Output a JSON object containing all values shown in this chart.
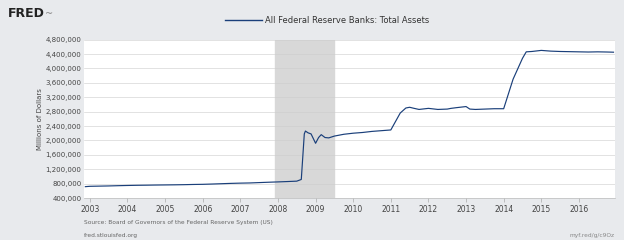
{
  "title": "All Federal Reserve Banks: Total Assets",
  "ylabel": "Millions of Dollars",
  "source_line1": "Source: Board of Governors of the Federal Reserve System (US)",
  "source_line2": "fred.stlouisfed.org",
  "source_right": "myf.red/g/c9Oz",
  "line_color": "#1a3f7a",
  "header_bg_color": "#e8eaed",
  "plot_bg_color": "#ffffff",
  "figure_bg_color": "#e8eaed",
  "shade_color": "#d8d8d8",
  "shade_start": 2007.92,
  "shade_end": 2009.5,
  "ylim": [
    400000,
    4800000
  ],
  "yticks": [
    400000,
    800000,
    1200000,
    1600000,
    2000000,
    2400000,
    2800000,
    3200000,
    3600000,
    4000000,
    4400000,
    4800000
  ],
  "xlim_start": 2002.85,
  "xlim_end": 2016.95,
  "xtick_years": [
    2003,
    2004,
    2005,
    2006,
    2007,
    2008,
    2009,
    2010,
    2011,
    2012,
    2013,
    2014,
    2015,
    2016
  ],
  "data_x": [
    2002.88,
    2003.0,
    2003.25,
    2003.5,
    2003.75,
    2004.0,
    2004.25,
    2004.5,
    2004.75,
    2005.0,
    2005.25,
    2005.5,
    2005.75,
    2006.0,
    2006.25,
    2006.5,
    2006.75,
    2007.0,
    2007.25,
    2007.5,
    2007.75,
    2008.0,
    2008.25,
    2008.5,
    2008.62,
    2008.7,
    2008.73,
    2008.8,
    2008.88,
    2009.0,
    2009.08,
    2009.15,
    2009.25,
    2009.35,
    2009.5,
    2009.75,
    2010.0,
    2010.25,
    2010.5,
    2010.75,
    2011.0,
    2011.25,
    2011.4,
    2011.5,
    2011.62,
    2011.75,
    2012.0,
    2012.25,
    2012.5,
    2012.6,
    2012.75,
    2013.0,
    2013.1,
    2013.25,
    2013.5,
    2013.75,
    2014.0,
    2014.25,
    2014.5,
    2014.6,
    2014.75,
    2015.0,
    2015.25,
    2015.5,
    2015.75,
    2016.0,
    2016.25,
    2016.5,
    2016.75,
    2016.92
  ],
  "data_y": [
    715000,
    725000,
    730000,
    735000,
    742000,
    748000,
    753000,
    756000,
    760000,
    763000,
    766000,
    770000,
    776000,
    780000,
    788000,
    797000,
    806000,
    813000,
    818000,
    828000,
    838000,
    847000,
    857000,
    868000,
    915000,
    2180000,
    2260000,
    2210000,
    2180000,
    1920000,
    2080000,
    2160000,
    2080000,
    2070000,
    2120000,
    2170000,
    2200000,
    2220000,
    2250000,
    2270000,
    2290000,
    2760000,
    2900000,
    2920000,
    2890000,
    2860000,
    2890000,
    2860000,
    2870000,
    2890000,
    2910000,
    2940000,
    2870000,
    2860000,
    2870000,
    2880000,
    2880000,
    3700000,
    4280000,
    4460000,
    4470000,
    4500000,
    4480000,
    4470000,
    4465000,
    4460000,
    4455000,
    4460000,
    4455000,
    4450000
  ]
}
